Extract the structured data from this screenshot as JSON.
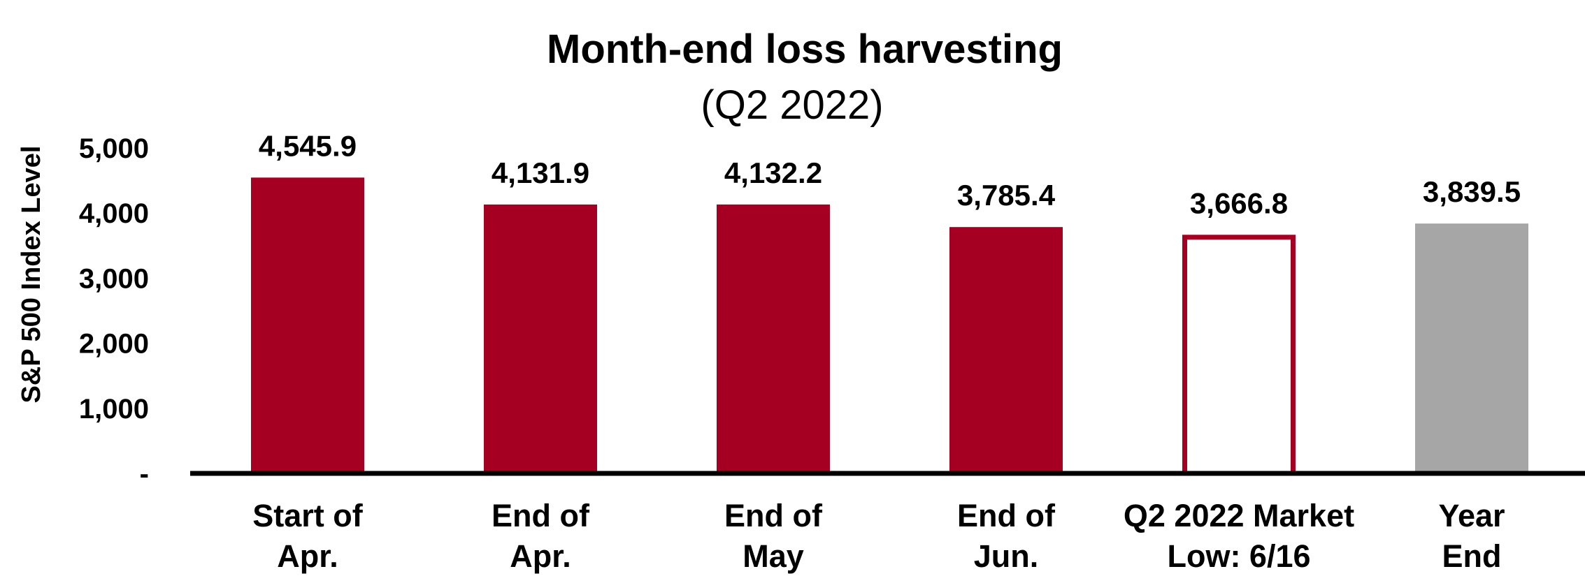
{
  "chart_data": {
    "type": "bar",
    "title": "Month-end loss harvesting",
    "subtitle": "(Q2 2022)",
    "ylabel": "S&P 500 Index Level",
    "xlabel": "",
    "ylim": [
      0,
      5000
    ],
    "yticks": [
      0,
      1000,
      2000,
      3000,
      4000,
      5000
    ],
    "ytick_labels": [
      "-",
      "1,000",
      "2,000",
      "3,000",
      "4,000",
      "5,000"
    ],
    "grid": false,
    "legend": "none",
    "categories": [
      [
        "Start of",
        "Apr."
      ],
      [
        "End of",
        "Apr."
      ],
      [
        "End of",
        "May"
      ],
      [
        "End of",
        "Jun."
      ],
      [
        "Q2 2022 Market",
        "Low: 6/16"
      ],
      [
        "Year",
        "End"
      ]
    ],
    "values": [
      4545.9,
      4131.9,
      4132.2,
      3785.4,
      3666.8,
      3839.5
    ],
    "data_labels": [
      "4,545.9",
      "4,131.9",
      "4,132.2",
      "3,785.4",
      "3,666.8",
      "3,839.5"
    ],
    "bar_styles": [
      "filled",
      "filled",
      "filled",
      "filled",
      "outline",
      "gray"
    ],
    "colors": {
      "primary": "#a50021",
      "gray": "#a6a6a6",
      "axis": "#000000"
    }
  }
}
